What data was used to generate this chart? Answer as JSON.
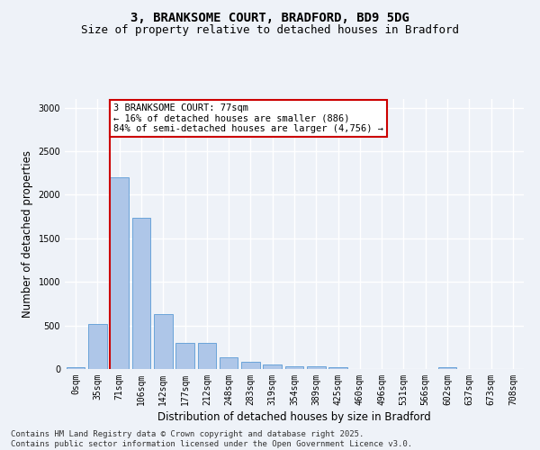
{
  "title_line1": "3, BRANKSOME COURT, BRADFORD, BD9 5DG",
  "title_line2": "Size of property relative to detached houses in Bradford",
  "xlabel": "Distribution of detached houses by size in Bradford",
  "ylabel": "Number of detached properties",
  "categories": [
    "0sqm",
    "35sqm",
    "71sqm",
    "106sqm",
    "142sqm",
    "177sqm",
    "212sqm",
    "248sqm",
    "283sqm",
    "319sqm",
    "354sqm",
    "389sqm",
    "425sqm",
    "460sqm",
    "496sqm",
    "531sqm",
    "566sqm",
    "602sqm",
    "637sqm",
    "673sqm",
    "708sqm"
  ],
  "values": [
    20,
    520,
    2200,
    1740,
    630,
    295,
    295,
    135,
    80,
    55,
    30,
    30,
    20,
    0,
    0,
    0,
    0,
    20,
    0,
    0,
    0
  ],
  "bar_color": "#aec6e8",
  "bar_edge_color": "#5b9bd5",
  "vline_x_index": 2,
  "vline_color": "#cc0000",
  "annotation_text": "3 BRANKSOME COURT: 77sqm\n← 16% of detached houses are smaller (886)\n84% of semi-detached houses are larger (4,756) →",
  "annotation_box_color": "#ffffff",
  "annotation_box_edge_color": "#cc0000",
  "ylim": [
    0,
    3100
  ],
  "yticks": [
    0,
    500,
    1000,
    1500,
    2000,
    2500,
    3000
  ],
  "footer_line1": "Contains HM Land Registry data © Crown copyright and database right 2025.",
  "footer_line2": "Contains public sector information licensed under the Open Government Licence v3.0.",
  "bg_color": "#eef2f8",
  "plot_bg_color": "#eef2f8",
  "grid_color": "#ffffff",
  "title_fontsize": 10,
  "subtitle_fontsize": 9,
  "axis_label_fontsize": 8.5,
  "tick_fontsize": 7,
  "footer_fontsize": 6.5,
  "annotation_fontsize": 7.5
}
